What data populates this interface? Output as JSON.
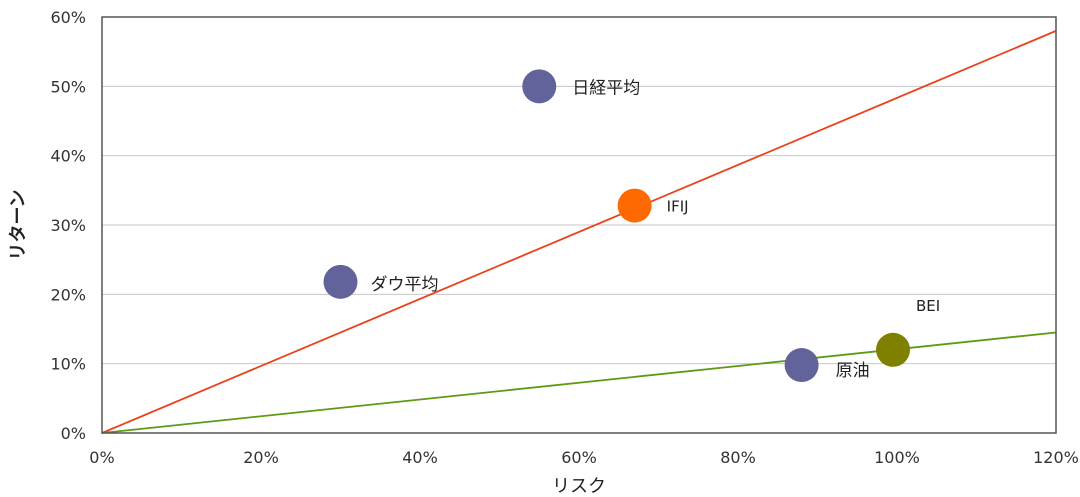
{
  "chart_data": {
    "type": "scatter",
    "xlabel": "リスク",
    "ylabel": "リターン",
    "xlim": [
      0,
      120
    ],
    "ylim": [
      0,
      60
    ],
    "x_ticks": [
      "0%",
      "20%",
      "40%",
      "60%",
      "80%",
      "100%",
      "120%"
    ],
    "y_ticks": [
      "0%",
      "10%",
      "20%",
      "30%",
      "40%",
      "50%",
      "60%"
    ],
    "grid": "horizontal",
    "points": [
      {
        "label": "日経平均",
        "x": 55,
        "y": 50,
        "color": "#62639a"
      },
      {
        "label": "IFIJ",
        "x": 67,
        "y": 32.8,
        "color": "#ff6a00"
      },
      {
        "label": "ダウ平均",
        "x": 30,
        "y": 21.8,
        "color": "#62639a"
      },
      {
        "label": "原油",
        "x": 88,
        "y": 9.8,
        "color": "#62639a"
      },
      {
        "label": "BEI",
        "x": 99.5,
        "y": 12,
        "color": "#7f8000"
      }
    ],
    "lines": [
      {
        "from": [
          0,
          0
        ],
        "to": [
          120,
          58
        ],
        "color": "#e8431a"
      },
      {
        "from": [
          0,
          0
        ],
        "to": [
          120,
          14.5
        ],
        "color": "#5e9a14"
      }
    ]
  }
}
